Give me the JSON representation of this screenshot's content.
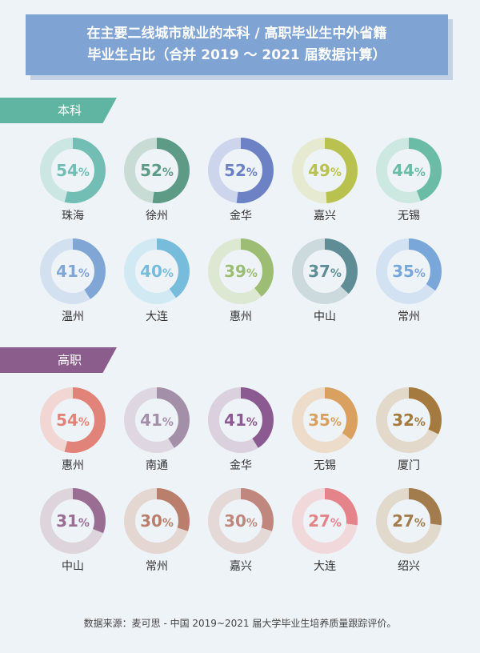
{
  "title": {
    "line1": "在主要二线城市就业的本科 / 高职毕业生中外省籍",
    "line2": "毕业生占比（合并 2019 ～ 2021 届数据计算）"
  },
  "chart_data": [
    {
      "type": "pie",
      "group": "本科",
      "categories": [
        "珠海",
        "徐州",
        "金华",
        "嘉兴",
        "无锡",
        "温州",
        "大连",
        "惠州",
        "中山",
        "常州"
      ],
      "values": [
        54,
        52,
        52,
        49,
        44,
        41,
        40,
        39,
        37,
        35
      ],
      "unit": "%",
      "colors": [
        "#72bdb4",
        "#5e9b86",
        "#6c82c4",
        "#b9c24f",
        "#6bbca6",
        "#7fa6d5",
        "#78bcdc",
        "#9cbd73",
        "#5f8d96",
        "#7aa7d9"
      ],
      "tracks": [
        "#cce6e3",
        "#c8dbd5",
        "#cdd5ec",
        "#e6ead0",
        "#cce8e1",
        "#d3e0f0",
        "#d1e9f3",
        "#dde8d2",
        "#ccdadd",
        "#d3e2f2"
      ]
    },
    {
      "type": "pie",
      "group": "高职",
      "categories": [
        "惠州",
        "南通",
        "金华",
        "无锡",
        "厦门",
        "中山",
        "常州",
        "嘉兴",
        "大连",
        "绍兴"
      ],
      "values": [
        54,
        41,
        41,
        35,
        32,
        31,
        30,
        30,
        27,
        27
      ],
      "unit": "%",
      "colors": [
        "#e2837a",
        "#a48fa8",
        "#8b5a91",
        "#d9a05f",
        "#a57a3e",
        "#9a6e92",
        "#ba7f6c",
        "#c0877e",
        "#e4838a",
        "#a37c4e"
      ],
      "tracks": [
        "#f1d6d4",
        "#ded7e1",
        "#dad0de",
        "#eddcca",
        "#e2d9ca",
        "#ddd4dc",
        "#e4d6d1",
        "#e4d9d6",
        "#f1d8da",
        "#e2d9cd"
      ]
    }
  ],
  "section_labels": {
    "bk": "本科",
    "gz": "高职"
  },
  "source": "数据来源：麦可思 - 中国 2019~2021 届大学毕业生培养质量跟踪评价。"
}
